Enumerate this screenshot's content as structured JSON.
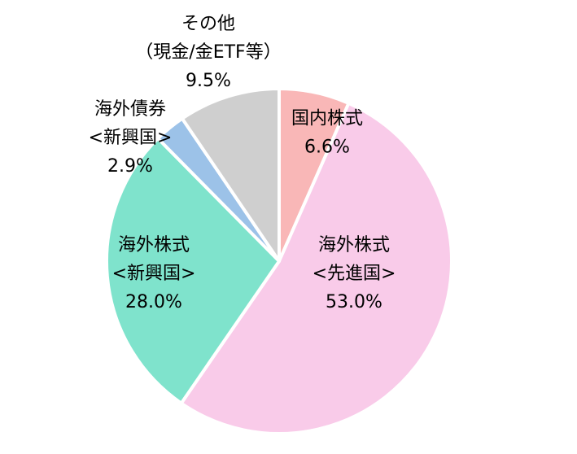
{
  "chart_data": {
    "type": "pie",
    "start_angle_deg": 0,
    "direction": "clockwise",
    "slices": [
      {
        "label_lines": [
          "国内株式"
        ],
        "value": 6.6,
        "value_label": "6.6%",
        "color": "#f9b7b7"
      },
      {
        "label_lines": [
          "海外株式",
          "<先進国>"
        ],
        "value": 53.0,
        "value_label": "53.0%",
        "color": "#f9cbe9"
      },
      {
        "label_lines": [
          "海外株式",
          "<新興国>"
        ],
        "value": 28.0,
        "value_label": "28.0%",
        "color": "#7fe3cc"
      },
      {
        "label_lines": [
          "海外債券",
          "<新興国>"
        ],
        "value": 2.9,
        "value_label": "2.9%",
        "color": "#9cc2e8"
      },
      {
        "label_lines": [
          "その他",
          "（現金/金ETF等）"
        ],
        "value": 9.5,
        "value_label": "9.5%",
        "color": "#cfcfcf"
      }
    ],
    "slice_border_color": "#ffffff"
  }
}
